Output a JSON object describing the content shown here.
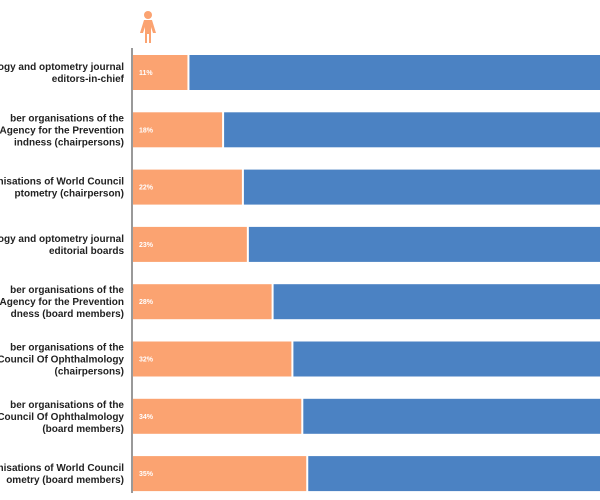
{
  "chart_data": {
    "type": "bar",
    "orientation": "horizontal",
    "stacked": true,
    "categories": [
      [
        "ology and optometry journal",
        "editors-in-chief"
      ],
      [
        "ber organisations of the",
        "al Agency for the Prevention",
        "indness (chairpersons)"
      ],
      [
        "rganisations of World Council",
        "ptometry (chairperson)"
      ],
      [
        "ology and optometry journal",
        "editorial boards"
      ],
      [
        "ber organisations of the",
        "al Agency for the Prevention",
        "dness (board members)"
      ],
      [
        "ber organisations of the",
        "al Council Of Ophthalmology",
        "(chairpersons)"
      ],
      [
        "ber organisations of the",
        "al Council Of Ophthalmology",
        "(board members)"
      ],
      [
        "rganisations of World Council",
        "ometry (board members)"
      ]
    ],
    "series": [
      {
        "values": [
          11,
          18,
          22,
          23,
          28,
          32,
          34,
          35
        ]
      },
      {
        "values": [
          89,
          82,
          78,
          77,
          72,
          68,
          66,
          65
        ]
      }
    ],
    "value_labels": [
      "11%",
      "18%",
      "22%",
      "23%",
      "28%",
      "32%",
      "34%",
      "35%"
    ],
    "xlim": [
      0,
      100
    ],
    "grid": false,
    "legend": "female icon above first segment column",
    "icon": "female-icon"
  },
  "colors": {
    "female": "#fba371",
    "male": "#4b82c3",
    "axis": "#333333",
    "text": "#222222"
  }
}
